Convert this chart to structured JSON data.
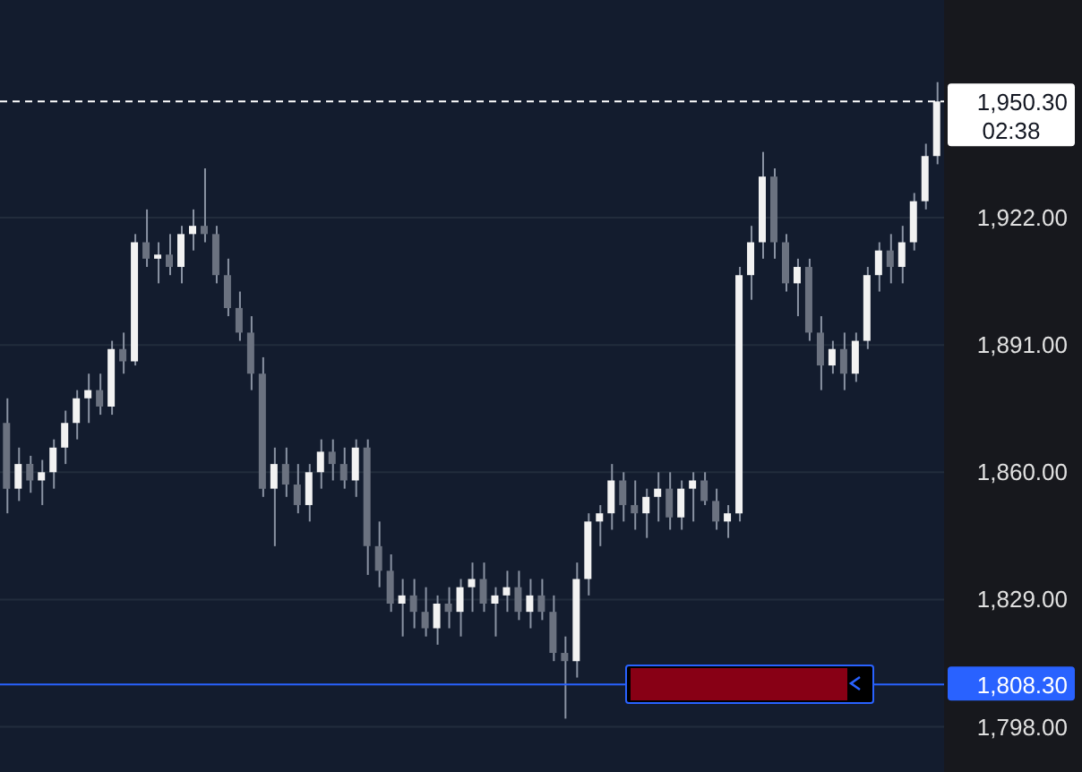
{
  "chart_data": {
    "type": "candlestick",
    "categories": [
      null,
      null,
      null,
      null,
      null,
      null,
      null,
      null,
      null,
      null,
      null,
      null,
      null,
      null,
      null,
      null,
      null,
      null,
      null,
      null,
      null,
      null,
      null,
      null,
      null,
      null,
      null,
      null,
      null,
      null,
      null,
      null,
      null,
      null,
      null,
      null,
      null,
      null,
      null,
      null,
      null,
      null,
      null,
      null,
      null,
      null,
      null,
      null,
      null,
      null,
      null,
      null,
      null,
      null,
      null,
      null,
      null,
      null,
      null,
      null,
      null,
      null,
      null,
      null,
      null,
      null,
      null,
      null,
      null,
      null,
      null,
      null,
      null,
      null,
      null,
      null,
      null,
      null,
      null,
      null,
      null
    ],
    "ohlc": [
      [
        1872,
        1878,
        1850,
        1856
      ],
      [
        1856,
        1866,
        1853,
        1862
      ],
      [
        1862,
        1864,
        1855,
        1858
      ],
      [
        1858,
        1863,
        1852,
        1860
      ],
      [
        1860,
        1868,
        1856,
        1866
      ],
      [
        1866,
        1875,
        1862,
        1872
      ],
      [
        1872,
        1880,
        1868,
        1878
      ],
      [
        1878,
        1884,
        1872,
        1880
      ],
      [
        1880,
        1884,
        1874,
        1876
      ],
      [
        1876,
        1892,
        1874,
        1890
      ],
      [
        1890,
        1894,
        1884,
        1887
      ],
      [
        1887,
        1918,
        1886,
        1916
      ],
      [
        1916,
        1924,
        1910,
        1912
      ],
      [
        1912,
        1916,
        1906,
        1913
      ],
      [
        1913,
        1918,
        1908,
        1910
      ],
      [
        1910,
        1920,
        1906,
        1918
      ],
      [
        1918,
        1924,
        1914,
        1920
      ],
      [
        1920,
        1934,
        1916,
        1918
      ],
      [
        1918,
        1920,
        1906,
        1908
      ],
      [
        1908,
        1912,
        1898,
        1900
      ],
      [
        1900,
        1904,
        1892,
        1894
      ],
      [
        1894,
        1898,
        1880,
        1884
      ],
      [
        1884,
        1888,
        1854,
        1856
      ],
      [
        1856,
        1866,
        1842,
        1862
      ],
      [
        1862,
        1866,
        1854,
        1857
      ],
      [
        1857,
        1862,
        1850,
        1852
      ],
      [
        1852,
        1862,
        1848,
        1860
      ],
      [
        1860,
        1868,
        1856,
        1865
      ],
      [
        1865,
        1868,
        1858,
        1862
      ],
      [
        1862,
        1866,
        1856,
        1858
      ],
      [
        1858,
        1868,
        1854,
        1866
      ],
      [
        1866,
        1868,
        1835,
        1842
      ],
      [
        1842,
        1848,
        1832,
        1836
      ],
      [
        1836,
        1840,
        1826,
        1828
      ],
      [
        1828,
        1834,
        1820,
        1830
      ],
      [
        1830,
        1834,
        1822,
        1826
      ],
      [
        1826,
        1832,
        1820,
        1822
      ],
      [
        1822,
        1830,
        1818,
        1828
      ],
      [
        1828,
        1832,
        1822,
        1826
      ],
      [
        1826,
        1834,
        1820,
        1832
      ],
      [
        1832,
        1838,
        1826,
        1834
      ],
      [
        1834,
        1838,
        1826,
        1828
      ],
      [
        1828,
        1832,
        1820,
        1830
      ],
      [
        1830,
        1836,
        1826,
        1832
      ],
      [
        1832,
        1836,
        1824,
        1826
      ],
      [
        1826,
        1834,
        1822,
        1830
      ],
      [
        1830,
        1834,
        1824,
        1826
      ],
      [
        1826,
        1830,
        1814,
        1816
      ],
      [
        1816,
        1820,
        1800,
        1814
      ],
      [
        1814,
        1838,
        1810,
        1834
      ],
      [
        1834,
        1850,
        1830,
        1848
      ],
      [
        1848,
        1852,
        1842,
        1850
      ],
      [
        1850,
        1862,
        1846,
        1858
      ],
      [
        1858,
        1860,
        1848,
        1852
      ],
      [
        1852,
        1858,
        1846,
        1850
      ],
      [
        1850,
        1856,
        1844,
        1854
      ],
      [
        1854,
        1860,
        1848,
        1856
      ],
      [
        1856,
        1860,
        1846,
        1849
      ],
      [
        1849,
        1858,
        1846,
        1856
      ],
      [
        1856,
        1860,
        1848,
        1858
      ],
      [
        1858,
        1860,
        1852,
        1853
      ],
      [
        1853,
        1856,
        1846,
        1848
      ],
      [
        1848,
        1852,
        1844,
        1850
      ],
      [
        1850,
        1910,
        1848,
        1908
      ],
      [
        1908,
        1920,
        1902,
        1916
      ],
      [
        1916,
        1938,
        1912,
        1932
      ],
      [
        1932,
        1934,
        1912,
        1916
      ],
      [
        1916,
        1918,
        1904,
        1906
      ],
      [
        1906,
        1912,
        1898,
        1910
      ],
      [
        1910,
        1912,
        1892,
        1894
      ],
      [
        1894,
        1898,
        1880,
        1886
      ],
      [
        1886,
        1892,
        1884,
        1890
      ],
      [
        1890,
        1894,
        1880,
        1884
      ],
      [
        1884,
        1894,
        1882,
        1892
      ],
      [
        1892,
        1910,
        1890,
        1908
      ],
      [
        1908,
        1916,
        1904,
        1914
      ],
      [
        1914,
        1918,
        1906,
        1910
      ],
      [
        1910,
        1920,
        1906,
        1916
      ],
      [
        1916,
        1928,
        1914,
        1926
      ],
      [
        1926,
        1940,
        1924,
        1937
      ],
      [
        1937,
        1955,
        1935,
        1950.3
      ]
    ],
    "ylim": [
      1787,
      1975
    ],
    "yticks": [
      {
        "value": 1798,
        "label": "1,798.00"
      },
      {
        "value": 1829,
        "label": "1,829.00"
      },
      {
        "value": 1860,
        "label": "1,860.00"
      },
      {
        "value": 1891,
        "label": "1,891.00"
      },
      {
        "value": 1922,
        "label": "1,922.00"
      }
    ],
    "grid": "y",
    "tick_labels": "y",
    "ref_lines": [
      {
        "axis": "y",
        "value": 1950.3,
        "label": "1,950.30",
        "color": "#ffffff",
        "line_style": "dashed"
      },
      {
        "axis": "y",
        "value": 1808.3,
        "label": "1,808.30",
        "color": "#2962ff",
        "line_style": "solid"
      }
    ],
    "annotations": [
      "02:38"
    ]
  }
}
